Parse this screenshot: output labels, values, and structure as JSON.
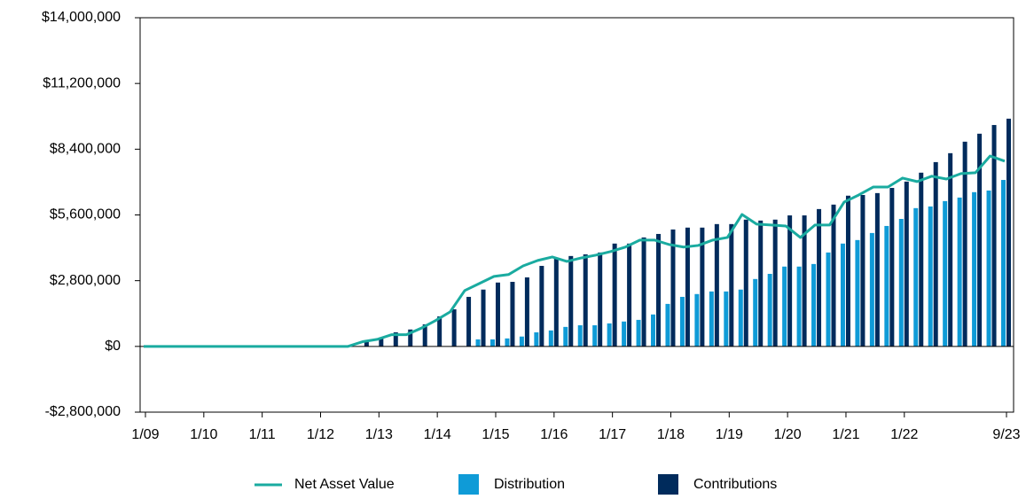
{
  "chart_data": {
    "type": "bar-line",
    "categories": [
      "1/09",
      null,
      null,
      null,
      "1/10",
      null,
      null,
      null,
      "1/11",
      null,
      null,
      null,
      "1/12",
      null,
      null,
      null,
      "1/13",
      null,
      null,
      null,
      "1/14",
      null,
      null,
      null,
      "1/15",
      null,
      null,
      null,
      "1/16",
      null,
      null,
      null,
      "1/17",
      null,
      null,
      null,
      "1/18",
      null,
      null,
      null,
      "1/19",
      null,
      null,
      null,
      "1/20",
      null,
      null,
      null,
      "1/21",
      null,
      null,
      null,
      "1/22",
      null,
      null,
      null,
      null,
      null,
      null,
      "9/23"
    ],
    "series": [
      {
        "name": "Net Asset Value",
        "kind": "line",
        "color": "#1aaba0",
        "values": [
          0,
          0,
          0,
          0,
          0,
          0,
          0,
          0,
          0,
          0,
          0,
          0,
          0,
          0,
          0,
          200000,
          300000,
          500000,
          500000,
          770000,
          1100000,
          1470000,
          2380000,
          2680000,
          2980000,
          3060000,
          3430000,
          3660000,
          3810000,
          3620000,
          3770000,
          3890000,
          4040000,
          4230000,
          4530000,
          4530000,
          4340000,
          4230000,
          4300000,
          4530000,
          4640000,
          5620000,
          5210000,
          5170000,
          5130000,
          4640000,
          5170000,
          5170000,
          6150000,
          6450000,
          6790000,
          6790000,
          7170000,
          7020000,
          7250000,
          7130000,
          7360000,
          7400000,
          8110000,
          7890000
        ]
      },
      {
        "name": "Distribution",
        "kind": "bar",
        "color": "#0f9bd7",
        "values": [
          0,
          0,
          0,
          0,
          0,
          0,
          0,
          0,
          0,
          0,
          0,
          0,
          0,
          0,
          0,
          0,
          0,
          0,
          0,
          0,
          0,
          0,
          0,
          300000,
          300000,
          340000,
          420000,
          600000,
          680000,
          830000,
          900000,
          900000,
          980000,
          1060000,
          1130000,
          1360000,
          1810000,
          2110000,
          2230000,
          2340000,
          2340000,
          2420000,
          2870000,
          3090000,
          3400000,
          3400000,
          3510000,
          4000000,
          4380000,
          4530000,
          4830000,
          5130000,
          5430000,
          5890000,
          5960000,
          6190000,
          6340000,
          6570000,
          6640000,
          7090000
        ]
      },
      {
        "name": "Contributions",
        "kind": "bar",
        "color": "#002b5c",
        "values": [
          0,
          0,
          0,
          0,
          0,
          0,
          0,
          0,
          0,
          0,
          0,
          0,
          0,
          0,
          0,
          230000,
          380000,
          600000,
          720000,
          940000,
          1280000,
          1580000,
          2110000,
          2420000,
          2720000,
          2750000,
          2940000,
          3430000,
          3740000,
          3850000,
          3920000,
          4000000,
          4380000,
          4380000,
          4640000,
          4790000,
          4980000,
          5060000,
          5060000,
          5210000,
          5210000,
          5400000,
          5360000,
          5400000,
          5580000,
          5580000,
          5850000,
          6040000,
          6420000,
          6450000,
          6530000,
          6750000,
          7020000,
          7400000,
          7850000,
          8230000,
          8720000,
          9060000,
          9430000,
          9700000
        ]
      }
    ],
    "ylim": [
      -2800000,
      14000000
    ],
    "yticks": [
      {
        "value": -2800000,
        "label": "-$2,800,000"
      },
      {
        "value": 0,
        "label": "$0"
      },
      {
        "value": 2800000,
        "label": "$2,800,000"
      },
      {
        "value": 5600000,
        "label": "$5,600,000"
      },
      {
        "value": 8400000,
        "label": "$8,400,000"
      },
      {
        "value": 11200000,
        "label": "$11,200,000"
      },
      {
        "value": 14000000,
        "label": "$14,000,000"
      }
    ],
    "legend": "bottom"
  }
}
